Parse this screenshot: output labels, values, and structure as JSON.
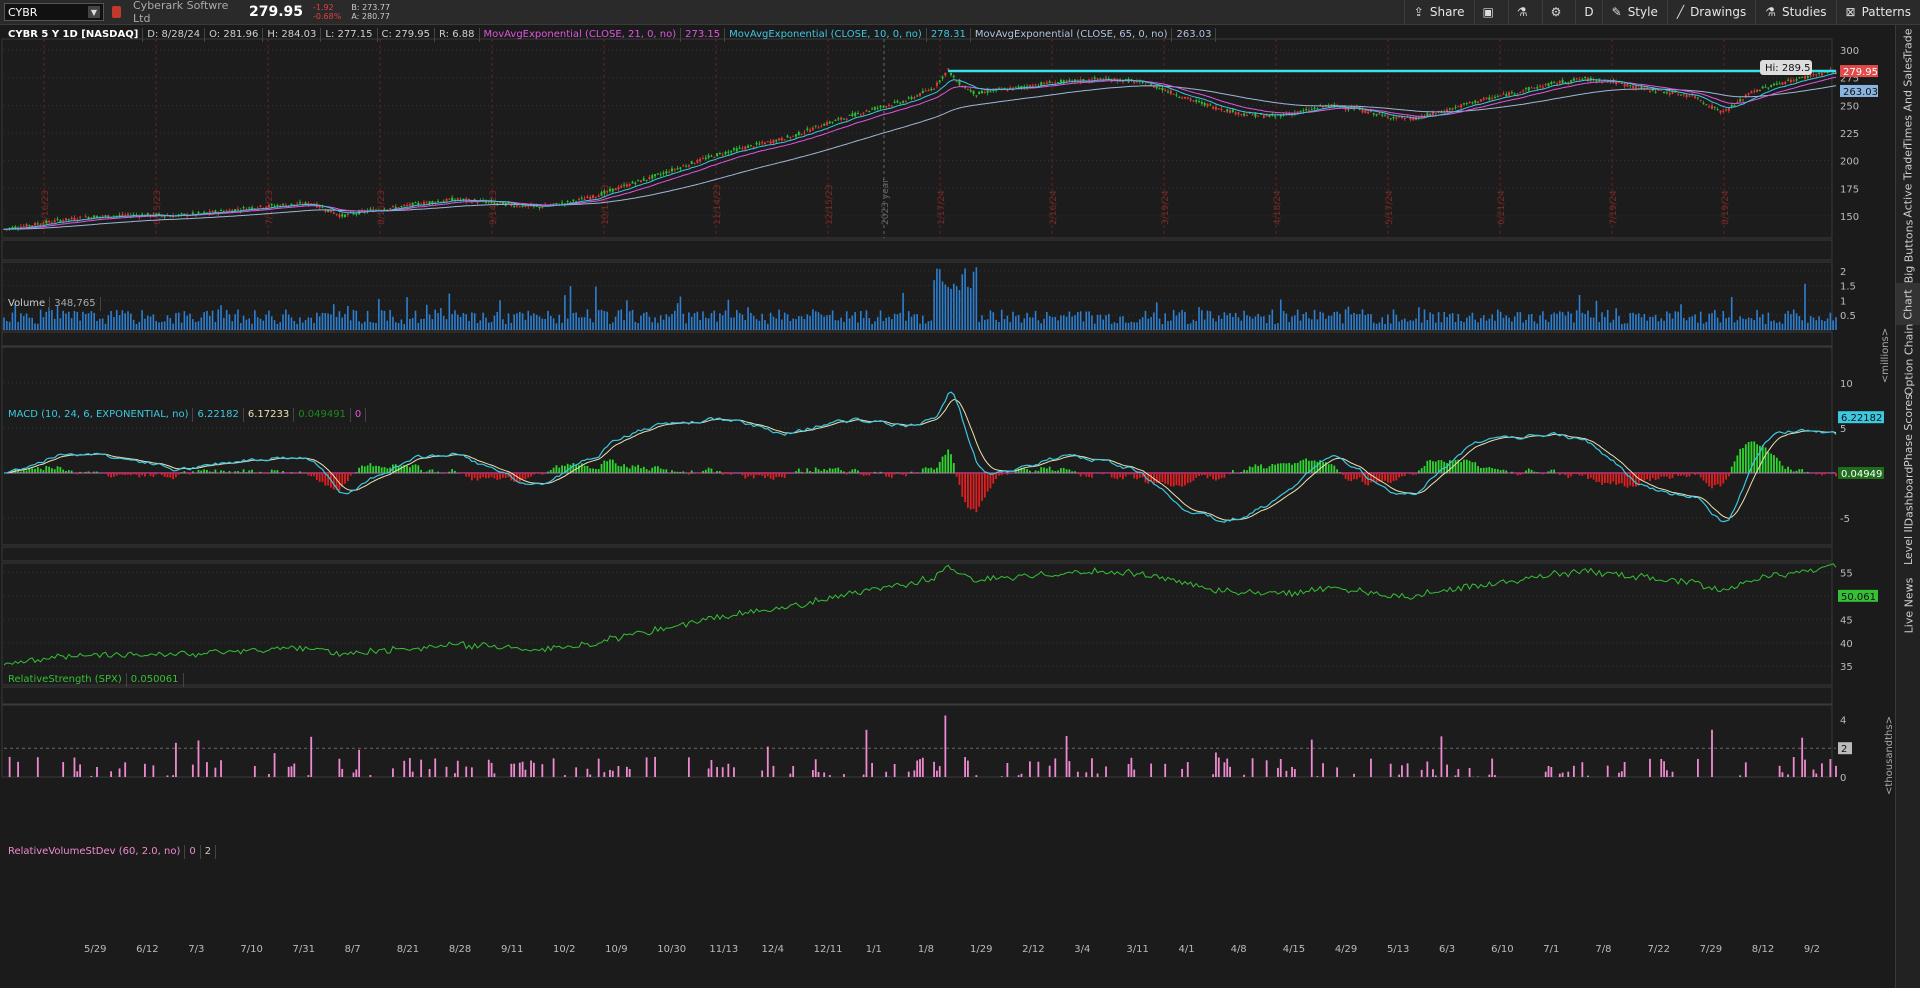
{
  "topbar": {
    "symbol": "CYBR",
    "company": "Cyberark Softwre Ltd",
    "last": "279.95",
    "change": "-1.92",
    "change_pct": "-0.68%",
    "bid": "B: 273.77",
    "ask": "A: 280.77",
    "buttons": {
      "share": "Share",
      "period": "D",
      "style": "Style",
      "drawings": "Drawings",
      "studies": "Studies",
      "patterns": "Patterns"
    }
  },
  "sidetabs": [
    "Trade",
    "Times And Sales",
    "Active Trader",
    "Big Buttons",
    "Chart",
    "Option Chain",
    "Phase Scores",
    "Dashboard",
    "Level II",
    "Live News"
  ],
  "price_legend": {
    "title": "CYBR 5 Y 1D [NASDAQ]",
    "date": "D: 8/28/24",
    "open": "O: 281.96",
    "high": "H: 284.03",
    "low": "L: 277.15",
    "close": "C: 279.95",
    "range": "R: 6.88",
    "ema21_label": "MovAvgExponential (CLOSE, 21, 0, no)",
    "ema21_value": "273.15",
    "ema10_label": "MovAvgExponential (CLOSE, 10, 0, no)",
    "ema10_value": "278.31",
    "ema65_label": "MovAvgExponential (CLOSE, 65, 0, no)",
    "ema65_value": "263.03"
  },
  "volume_legend": {
    "title": "Volume",
    "value": "348,765"
  },
  "macd_legend": {
    "title": "MACD (10, 24, 6, EXPONENTIAL, no)",
    "value": "6.22182",
    "avg": "6.17233",
    "diff": "0.049491",
    "zero": "0"
  },
  "rs_legend": {
    "title": "RelativeStrength (SPX)",
    "value": "0.050061"
  },
  "rvsd_legend": {
    "title": "RelativeVolumeStDev (60, 2.0, no)",
    "v1": "0",
    "v2": "2"
  },
  "axis_labels": {
    "millions": "<millions>",
    "thousandths": "<thousandths>"
  },
  "price_axis": [
    "300",
    "275",
    "250",
    "225",
    "200",
    "175",
    "150"
  ],
  "volume_axis": [
    "2",
    "1.5",
    "1",
    "0.5"
  ],
  "macd_axis": [
    "10",
    "5",
    "0",
    "-5"
  ],
  "rs_axis": [
    "55",
    "50",
    "45",
    "40",
    "35"
  ],
  "rvsd_axis": [
    "4",
    "2",
    "0"
  ],
  "price_badges": {
    "close": "279.95",
    "ema65": "263.03",
    "hi": "Hi: 289.5"
  },
  "macd_badges": {
    "value": "6.22182",
    "diff": "0.04949"
  },
  "rs_badge": "50.061",
  "rvsd_badge": "2",
  "year_marker": "2023 year",
  "date_axis": [
    "5/29",
    "6/12",
    "7/3",
    "7/10",
    "7/31",
    "8/7",
    "8/21",
    "8/28",
    "9/11",
    "10/2",
    "10/9",
    "10/30",
    "11/13",
    "12/4",
    "12/11",
    "1/1",
    "1/8",
    "1/29",
    "2/12",
    "3/4",
    "3/11",
    "4/1",
    "4/8",
    "4/15",
    "4/29",
    "5/13",
    "6/3",
    "6/10",
    "7/1",
    "7/8",
    "7/22",
    "7/29",
    "8/12",
    "9/2"
  ],
  "vertical_date_labels": [
    "5/16/23",
    "6/15/23",
    "7/17/23",
    "8/15/23",
    "9/14/23",
    "10/13/23",
    "11/14/23",
    "12/15/23",
    "1/17/24",
    "2/16/24",
    "3/19/24",
    "4/18/24",
    "5/17/24",
    "6/21/24",
    "7/19/24",
    "8/19/24"
  ],
  "chart_data": {
    "type": "line",
    "title": "CYBR 5 Y 1D [NASDAQ]",
    "xlabel": "",
    "ylabel": "",
    "ylim": [
      130,
      310
    ],
    "price_path": [
      [
        0,
        138
      ],
      [
        10,
        142
      ],
      [
        20,
        146
      ],
      [
        30,
        149
      ],
      [
        40,
        150
      ],
      [
        50,
        151
      ],
      [
        60,
        150
      ],
      [
        70,
        152
      ],
      [
        80,
        155
      ],
      [
        90,
        158
      ],
      [
        100,
        160
      ],
      [
        110,
        161
      ],
      [
        115,
        155
      ],
      [
        120,
        150
      ],
      [
        130,
        155
      ],
      [
        140,
        158
      ],
      [
        150,
        162
      ],
      [
        160,
        165
      ],
      [
        170,
        163
      ],
      [
        180,
        160
      ],
      [
        190,
        158
      ],
      [
        200,
        162
      ],
      [
        210,
        168
      ],
      [
        220,
        177
      ],
      [
        230,
        185
      ],
      [
        240,
        194
      ],
      [
        250,
        203
      ],
      [
        260,
        210
      ],
      [
        270,
        216
      ],
      [
        280,
        222
      ],
      [
        290,
        232
      ],
      [
        300,
        240
      ],
      [
        310,
        248
      ],
      [
        320,
        254
      ],
      [
        330,
        266
      ],
      [
        335,
        282
      ],
      [
        338,
        272
      ],
      [
        340,
        268
      ],
      [
        345,
        260
      ],
      [
        350,
        263
      ],
      [
        360,
        266
      ],
      [
        370,
        270
      ],
      [
        380,
        272
      ],
      [
        390,
        274
      ],
      [
        400,
        272
      ],
      [
        410,
        266
      ],
      [
        420,
        256
      ],
      [
        430,
        248
      ],
      [
        440,
        242
      ],
      [
        450,
        240
      ],
      [
        460,
        244
      ],
      [
        470,
        250
      ],
      [
        480,
        247
      ],
      [
        490,
        240
      ],
      [
        500,
        238
      ],
      [
        510,
        244
      ],
      [
        520,
        252
      ],
      [
        530,
        258
      ],
      [
        540,
        264
      ],
      [
        550,
        270
      ],
      [
        560,
        274
      ],
      [
        570,
        272
      ],
      [
        580,
        266
      ],
      [
        590,
        262
      ],
      [
        600,
        258
      ],
      [
        605,
        250
      ],
      [
        610,
        244
      ],
      [
        615,
        252
      ],
      [
        620,
        262
      ],
      [
        630,
        270
      ],
      [
        640,
        276
      ],
      [
        648,
        281
      ],
      [
        650,
        280
      ]
    ],
    "volume_range": [
      0,
      2.3
    ],
    "macd_range": [
      -8,
      14
    ],
    "rs_range": [
      31,
      57
    ],
    "rvsd_range": [
      0,
      5
    ]
  }
}
